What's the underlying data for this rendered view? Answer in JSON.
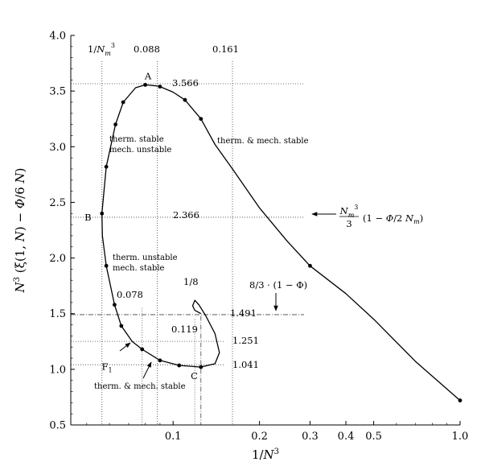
{
  "chart_data": {
    "type": "line",
    "title": "",
    "xlabel": "1/N³",
    "ylabel": "N³ (ξ(1, N) − Φ/6 N)",
    "x_scale": "log",
    "xlim": [
      0.044,
      1.0
    ],
    "ylim": [
      0.5,
      4.0
    ],
    "x_tick_labels": [
      "0.1",
      "0.2",
      "0.3",
      "0.4",
      "0.5",
      "1.0"
    ],
    "x_ticks": [
      0.1,
      0.2,
      0.3,
      0.4,
      0.5,
      1.0
    ],
    "y_tick_labels": [
      "0.5",
      "1.0",
      "1.5",
      "2.0",
      "2.5",
      "3.0",
      "3.5",
      "4.0"
    ],
    "y_ticks": [
      0.5,
      1.0,
      1.5,
      2.0,
      2.5,
      3.0,
      3.5,
      4.0
    ],
    "grid": false,
    "series": [
      {
        "color": "#000000",
        "curve": [
          [
            1.0,
            0.72
          ],
          [
            0.7,
            1.07
          ],
          [
            0.5,
            1.45
          ],
          [
            0.4,
            1.68
          ],
          [
            0.3,
            1.93
          ],
          [
            0.25,
            2.15
          ],
          [
            0.2,
            2.45
          ],
          [
            0.161,
            2.8
          ],
          [
            0.14,
            3.02
          ],
          [
            0.125,
            3.25
          ],
          [
            0.11,
            3.42
          ],
          [
            0.1,
            3.49
          ],
          [
            0.09,
            3.54
          ],
          [
            0.088,
            3.546
          ],
          [
            0.08,
            3.556
          ],
          [
            0.074,
            3.53
          ],
          [
            0.067,
            3.4
          ],
          [
            0.063,
            3.2
          ],
          [
            0.0585,
            2.82
          ],
          [
            0.0565,
            2.4
          ],
          [
            0.0567,
            2.2
          ],
          [
            0.0585,
            1.93
          ],
          [
            0.0625,
            1.58
          ],
          [
            0.066,
            1.39
          ],
          [
            0.072,
            1.25
          ],
          [
            0.078,
            1.18
          ],
          [
            0.09,
            1.08
          ],
          [
            0.105,
            1.035
          ],
          [
            0.125,
            1.02
          ],
          [
            0.14,
            1.05
          ],
          [
            0.145,
            1.15
          ],
          [
            0.14,
            1.32
          ],
          [
            0.13,
            1.48
          ],
          [
            0.123,
            1.58
          ],
          [
            0.119,
            1.62
          ],
          [
            0.117,
            1.57
          ],
          [
            0.119,
            1.53
          ],
          [
            0.123,
            1.51
          ],
          [
            0.125,
            1.5
          ]
        ],
        "points": [
          [
            1.0,
            0.72
          ],
          [
            0.3,
            1.93
          ],
          [
            0.125,
            3.25
          ],
          [
            0.11,
            3.42
          ],
          [
            0.09,
            3.54
          ],
          [
            0.08,
            3.556
          ],
          [
            0.067,
            3.4
          ],
          [
            0.063,
            3.2
          ],
          [
            0.0585,
            2.82
          ],
          [
            0.0565,
            2.4
          ],
          [
            0.0585,
            1.93
          ],
          [
            0.0625,
            1.58
          ],
          [
            0.066,
            1.39
          ],
          [
            0.078,
            1.18
          ],
          [
            0.09,
            1.08
          ],
          [
            0.105,
            1.035
          ],
          [
            0.125,
            1.02
          ]
        ]
      }
    ],
    "reference_lines": {
      "vertical": [
        {
          "x": 0.0565,
          "style": "dotted",
          "label": "1/N_m³"
        },
        {
          "x": 0.088,
          "style": "dotted",
          "label": "0.088"
        },
        {
          "x": 0.161,
          "style": "dotted",
          "label": "0.161"
        },
        {
          "x": 0.078,
          "style": "dotted"
        },
        {
          "x": 0.119,
          "style": "dotted"
        },
        {
          "x": 0.125,
          "style": "dashdot"
        }
      ],
      "horizontal": [
        {
          "y": 3.566,
          "style": "dotted",
          "label": "3.566"
        },
        {
          "y": 2.366,
          "style": "dotted",
          "label": "2.366"
        },
        {
          "y": 1.491,
          "style": "dashdot",
          "label": "1.491"
        },
        {
          "y": 1.251,
          "style": "dotted",
          "label": "1.251"
        },
        {
          "y": 1.041,
          "style": "dotted",
          "label": "1.041"
        }
      ]
    },
    "point_labels": [
      {
        "text": "A",
        "x": 0.0818,
        "y": 3.605
      },
      {
        "text": "B",
        "x": 0.0505,
        "y": 2.366
      },
      {
        "text": "C",
        "x": 0.1185,
        "y": 0.955
      },
      {
        "text": "F",
        "x": 0.0705,
        "y": 1.095,
        "subscript": "1"
      }
    ],
    "annotations": {
      "stable_unstable": [
        "therm. stable",
        "mech. unstable"
      ],
      "unstable_stable": [
        "therm. unstable",
        "mech. stable"
      ],
      "both_stable_upper": "therm. & mech. stable",
      "both_stable_lower": "therm. & mech. stable",
      "one_eighth": "1/8",
      "num_0078": "0.078",
      "num_0119": "0.119",
      "limit_expr": "8/3 · (1 − Φ)",
      "asymptote_expr": {
        "numerator": "N_m³",
        "denominator": "3",
        "paren_expr": "1 − Φ/2 N_m"
      }
    }
  }
}
